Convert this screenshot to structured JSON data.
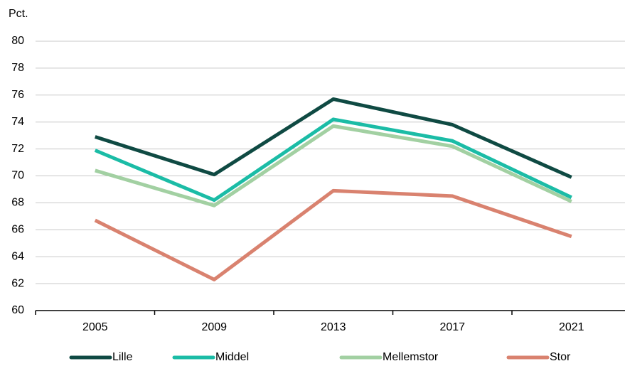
{
  "chart_data": {
    "type": "line",
    "y_unit_label": "Pct.",
    "categories": [
      "2005",
      "2009",
      "2013",
      "2017",
      "2021"
    ],
    "series": [
      {
        "name": "Lille",
        "color": "#0f4a43",
        "values": [
          72.9,
          70.1,
          75.7,
          73.8,
          69.9
        ]
      },
      {
        "name": "Middel",
        "color": "#1bbca6",
        "values": [
          71.9,
          68.2,
          74.2,
          72.6,
          68.4
        ]
      },
      {
        "name": "Mellemstor",
        "color": "#a2d0a2",
        "values": [
          70.4,
          67.8,
          73.7,
          72.2,
          68.1
        ]
      },
      {
        "name": "Stor",
        "color": "#d9826f",
        "values": [
          66.7,
          62.3,
          68.9,
          68.5,
          65.5
        ]
      }
    ],
    "ylim": [
      60,
      80
    ],
    "yticks": [
      60,
      62,
      64,
      66,
      68,
      70,
      72,
      74,
      76,
      78,
      80
    ],
    "grid": true,
    "legend": "bottom"
  }
}
